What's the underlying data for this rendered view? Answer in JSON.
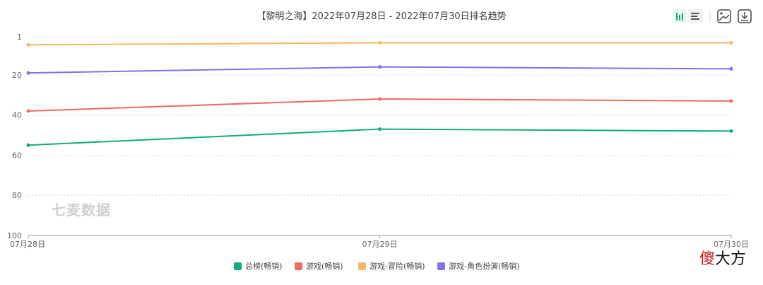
{
  "chart_data": {
    "type": "line",
    "title": "【黎明之海】2022年07月28日 - 2022年07月30日排名趋势",
    "categories": [
      "07月28日",
      "07月29日",
      "07月30日"
    ],
    "y_ticks": [
      "1",
      "20",
      "40",
      "60",
      "80",
      "100"
    ],
    "y_tick_values": [
      1,
      20,
      40,
      60,
      80,
      100
    ],
    "ylim": [
      1,
      100
    ],
    "y_inverted": true,
    "grid": true,
    "legend_position": "bottom",
    "series": [
      {
        "name": "总榜(畅销)",
        "color": "#12a981",
        "values": [
          55,
          47,
          48
        ]
      },
      {
        "name": "游戏(畅销)",
        "color": "#ed6b5f",
        "values": [
          38,
          32,
          33
        ]
      },
      {
        "name": "游戏-冒险(畅销)",
        "color": "#f6b766",
        "values": [
          5,
          4,
          4
        ]
      },
      {
        "name": "游戏-角色扮演(畅销)",
        "color": "#8272e6",
        "values": [
          19,
          16,
          17
        ]
      }
    ]
  },
  "watermark": "七麦数据",
  "brand": {
    "part1": "傻",
    "part2": "大方",
    "color1": "#cc1c1c",
    "color2": "#111111"
  },
  "toolbar": {
    "icons": [
      "bar-chart-icon",
      "list-icon",
      "image-icon",
      "download-icon"
    ]
  }
}
